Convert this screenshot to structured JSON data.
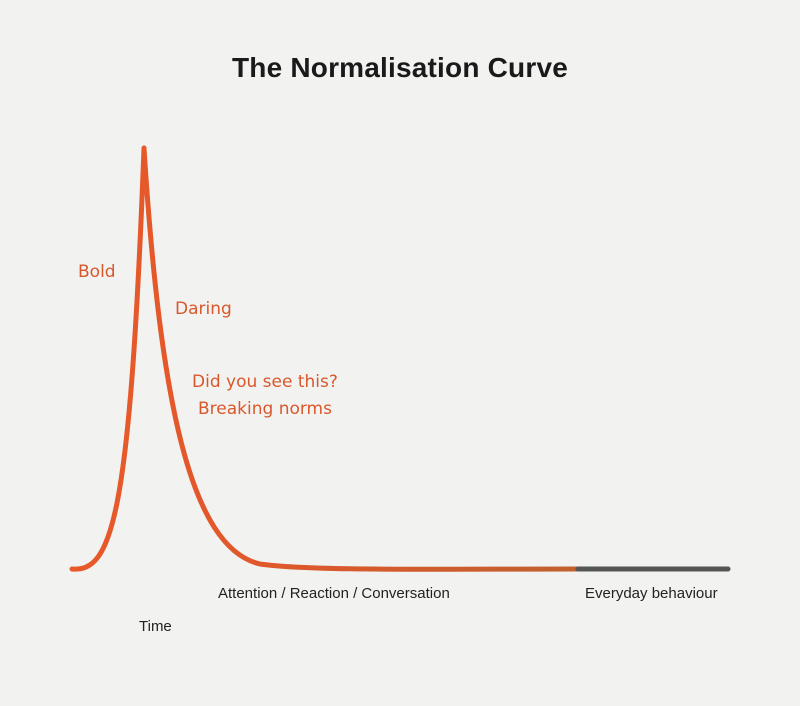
{
  "title": "The Normalisation Curve",
  "annotations": {
    "bold": "Bold",
    "daring": "Daring",
    "did_you_see": "Did you see this?",
    "breaking_norms": "Breaking norms"
  },
  "labels": {
    "attention": "Attention / Reaction / Conversation",
    "everyday": "Everyday behaviour",
    "time": "Time"
  },
  "colors": {
    "background": "#f2f2f1",
    "curve_orange": "#e8592a",
    "curve_brown": "#c0602f",
    "curve_grey": "#555555",
    "annotation_text": "#d9582b"
  }
}
